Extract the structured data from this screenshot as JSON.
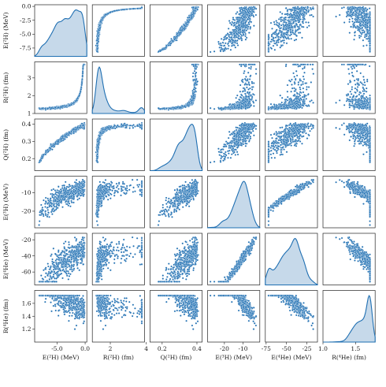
{
  "chart_data": {
    "type": "pairplot",
    "variables": [
      {
        "key": "E2H",
        "label": "E(²H) (MeV)",
        "range": [
          -9,
          0.3
        ],
        "ticks": [
          -7.5,
          -5.0,
          -2.5,
          0.0
        ],
        "bottom_ticks": [
          -5,
          0
        ],
        "tick_decimals": 1
      },
      {
        "key": "R2H",
        "label": "R(²H) (fm)",
        "range": [
          1.0,
          3.9
        ],
        "ticks": [
          1,
          2,
          3
        ],
        "bottom_ticks": [
          2,
          4
        ],
        "tick_decimals": 0
      },
      {
        "key": "Q2H",
        "label": "Q(²H) (fm)",
        "range": [
          0.13,
          0.43
        ],
        "ticks": [
          0.2,
          0.3,
          0.4
        ],
        "bottom_ticks": [
          0.2,
          0.4
        ],
        "tick_decimals": 1
      },
      {
        "key": "E3H",
        "label": "E(³H) (MeV)",
        "range": [
          -29,
          -1
        ],
        "ticks": [
          -20,
          -10
        ],
        "bottom_ticks": [
          -20,
          -10
        ],
        "tick_decimals": 0
      },
      {
        "key": "E4He",
        "label": "E(⁴He) (MeV)",
        "range": [
          -76,
          -12
        ],
        "ticks": [
          -60,
          -40,
          -20
        ],
        "bottom_ticks": [
          -75,
          -50,
          -25
        ],
        "tick_decimals": 0
      },
      {
        "key": "R4He",
        "label": "R(⁴He) (fm)",
        "range": [
          1.0,
          1.8
        ],
        "ticks": [
          1.2,
          1.4,
          1.6
        ],
        "bottom_ticks": [
          1.0,
          1.5
        ],
        "tick_decimals": 1
      }
    ],
    "diagonal": "kde",
    "offdiagonal": "scatter",
    "color": "#1f6fb2",
    "fill_color": "#c6d9ea",
    "sample_count": 520
  }
}
